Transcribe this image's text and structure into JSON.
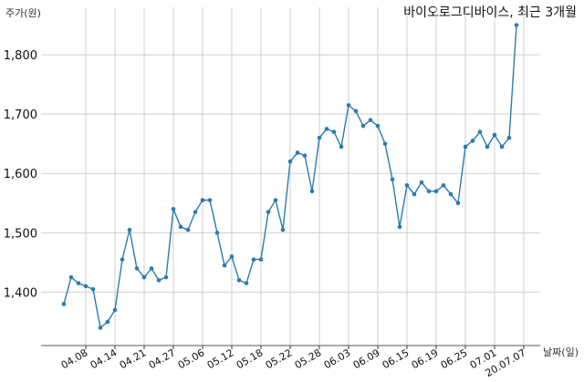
{
  "chart_data": {
    "type": "line",
    "title": "바이오로그디바이스, 최근 3개월",
    "xlabel": "날짜(일)",
    "ylabel": "주가(원)",
    "ylim": [
      1310,
      1880
    ],
    "yticks": [
      1400,
      1500,
      1600,
      1700,
      1800
    ],
    "ytick_labels": [
      "1,400",
      "1,500",
      "1,600",
      "1,700",
      "1,800"
    ],
    "grid": true,
    "legend": "none",
    "line_color": "#2b7bb0",
    "x_tick_labels": [
      "04.08",
      "04.14",
      "04.21",
      "04.27",
      "05.06",
      "05.12",
      "05.18",
      "05.22",
      "05.28",
      "06.03",
      "06.09",
      "06.15",
      "06.19",
      "06.25",
      "07.01",
      "20.07.07"
    ],
    "x_tick_index": [
      3,
      7,
      11,
      15,
      19,
      23,
      27,
      31,
      35,
      39,
      43,
      47,
      51,
      55,
      59,
      63
    ],
    "series": [
      {
        "values": [
          1380,
          1425,
          1415,
          1410,
          1405,
          1340,
          1350,
          1370,
          1455,
          1505,
          1440,
          1425,
          1440,
          1420,
          1425,
          1540,
          1510,
          1505,
          1535,
          1555,
          1555,
          1500,
          1445,
          1460,
          1420,
          1415,
          1455,
          1455,
          1535,
          1555,
          1505,
          1620,
          1635,
          1630,
          1570,
          1660,
          1675,
          1670,
          1645,
          1715,
          1705,
          1680,
          1690,
          1680,
          1650,
          1590,
          1510,
          1580,
          1565,
          1585,
          1570,
          1570,
          1580,
          1565,
          1550,
          1645,
          1655,
          1670,
          1645,
          1665,
          1645,
          1660,
          1850
        ]
      }
    ]
  }
}
